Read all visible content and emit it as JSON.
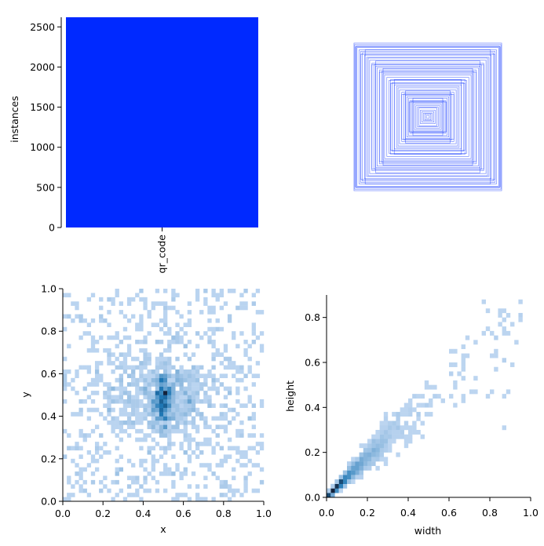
{
  "chart_data": [
    {
      "type": "bar",
      "categories": [
        "qr_code"
      ],
      "values": [
        2620
      ],
      "xlabel": "",
      "ylabel": "instances",
      "ylim": [
        0,
        2620
      ],
      "yticks": [
        0,
        500,
        1000,
        1500,
        2000,
        2500
      ],
      "color": "#0029ff"
    },
    {
      "type": "other",
      "description_kind": "box-overlay",
      "color": "#0029ff",
      "boxes": [
        [
          0.02,
          0.02
        ],
        [
          0.04,
          0.04
        ],
        [
          0.06,
          0.05
        ],
        [
          0.08,
          0.07
        ],
        [
          0.1,
          0.09
        ],
        [
          0.12,
          0.12
        ],
        [
          0.14,
          0.13
        ],
        [
          0.16,
          0.15
        ],
        [
          0.18,
          0.17
        ],
        [
          0.2,
          0.19
        ],
        [
          0.22,
          0.21
        ],
        [
          0.24,
          0.22
        ],
        [
          0.26,
          0.25
        ],
        [
          0.28,
          0.27
        ],
        [
          0.3,
          0.29
        ],
        [
          0.32,
          0.31
        ],
        [
          0.35,
          0.33
        ],
        [
          0.38,
          0.36
        ],
        [
          0.4,
          0.39
        ],
        [
          0.42,
          0.41
        ],
        [
          0.45,
          0.43
        ],
        [
          0.48,
          0.46
        ],
        [
          0.5,
          0.5
        ],
        [
          0.52,
          0.49
        ],
        [
          0.55,
          0.53
        ],
        [
          0.58,
          0.56
        ],
        [
          0.6,
          0.58
        ],
        [
          0.62,
          0.61
        ],
        [
          0.65,
          0.63
        ],
        [
          0.68,
          0.66
        ],
        [
          0.7,
          0.68
        ],
        [
          0.72,
          0.7
        ],
        [
          0.75,
          0.72
        ],
        [
          0.78,
          0.76
        ],
        [
          0.8,
          0.79
        ],
        [
          0.82,
          0.8
        ],
        [
          0.85,
          0.83
        ],
        [
          0.88,
          0.86
        ],
        [
          0.9,
          0.88
        ],
        [
          0.92,
          0.9
        ],
        [
          0.95,
          0.93
        ],
        [
          0.96,
          0.95
        ],
        [
          0.97,
          0.94
        ],
        [
          0.98,
          0.97
        ],
        [
          0.99,
          0.99
        ],
        [
          0.3,
          0.35
        ],
        [
          0.35,
          0.3
        ],
        [
          0.5,
          0.45
        ],
        [
          0.45,
          0.5
        ],
        [
          0.6,
          0.65
        ],
        [
          0.65,
          0.6
        ],
        [
          0.7,
          0.75
        ],
        [
          0.75,
          0.7
        ],
        [
          0.84,
          0.9
        ],
        [
          0.9,
          0.84
        ],
        [
          0.2,
          0.25
        ],
        [
          0.25,
          0.2
        ]
      ]
    },
    {
      "type": "heatmap",
      "xlabel": "x",
      "ylabel": "y",
      "xlim": [
        0,
        1
      ],
      "ylim": [
        0,
        1
      ],
      "xticks": [
        0.0,
        0.2,
        0.4,
        0.6,
        0.8,
        1.0
      ],
      "yticks": [
        0.0,
        0.2,
        0.4,
        0.6,
        0.8,
        1.0
      ],
      "tick_labels": [
        "0.0",
        "0.2",
        "0.4",
        "0.6",
        "0.8",
        "1.0"
      ],
      "center": [
        0.5,
        0.48
      ],
      "color": "#1f77b4"
    },
    {
      "type": "heatmap",
      "xlabel": "width",
      "ylabel": "height",
      "xlim": [
        0,
        1
      ],
      "ylim": [
        0,
        0.9
      ],
      "xticks": [
        0.0,
        0.2,
        0.4,
        0.6,
        0.8,
        1.0
      ],
      "xtick_labels": [
        "0.0",
        "0.2",
        "0.4",
        "0.6",
        "0.8",
        "1.0"
      ],
      "yticks": [
        0.0,
        0.2,
        0.4,
        0.6,
        0.8
      ],
      "ytick_labels": [
        "0.0",
        "0.2",
        "0.4",
        "0.6",
        "0.8"
      ],
      "max_extent": [
        0.97,
        0.96
      ],
      "color": "#1f77b4"
    }
  ]
}
